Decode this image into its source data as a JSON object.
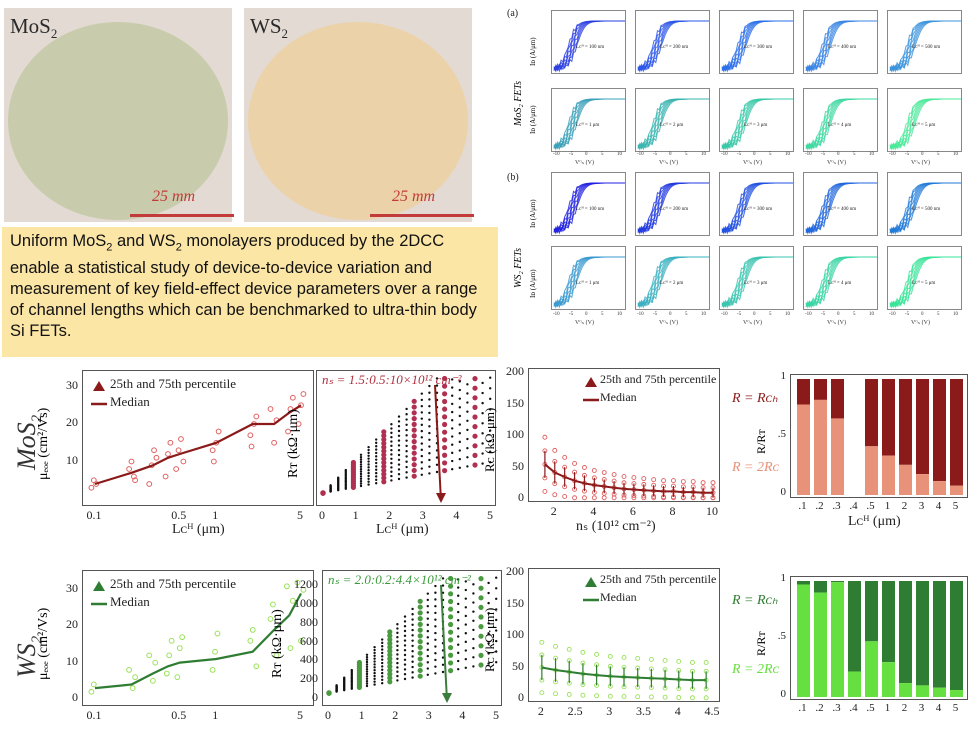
{
  "colors": {
    "mos2_wafer": "#c9ccac",
    "ws2_wafer": "#ecd2a8",
    "scale": "#c23a3a",
    "mos2_dark": "#8b1a1a",
    "mos2_light": "#e8927a",
    "mos2_points": "#e06060",
    "ws2_dark": "#2e7d32",
    "ws2_light": "#7ee860",
    "ws2_points": "#9ae25a",
    "caption_bg": "#fbe6a6"
  },
  "wafers": [
    {
      "label_main": "MoS",
      "label_sub": "2",
      "scale_text": "25 mm"
    },
    {
      "label_main": "WS",
      "label_sub": "2",
      "scale_text": "25 mm"
    }
  ],
  "caption": {
    "t1": "Uniform MoS",
    "s1": "2",
    "t2": " and WS",
    "s2": "2",
    "t3": " monolayers produced by the 2DCC enable a statistical study of device-to-device variation and measurement of key field-effect device parameters over a range of channel lengths which can be benchmarked to ultra-thin body Si FETs."
  },
  "transfer": {
    "label_a": "(a)",
    "label_b": "(b)",
    "mos2_row_label": "MoS₂ FETs",
    "ws2_row_label": "WS₂ FETs",
    "ylabel": "Iᴅ (A/μm)",
    "xlabel": "Vᴳₛ (V)",
    "top_row_L": [
      "Lᴄᴴ = 100 nm",
      "Lᴄᴴ = 200 nm",
      "Lᴄᴴ = 300 nm",
      "Lᴄᴴ = 400 nm",
      "Lᴄᴴ = 500 nm"
    ],
    "bottom_row_L": [
      "Lᴄᴴ = 1 μm",
      "Lᴄᴴ = 2 μm",
      "Lᴄᴴ = 3 μm",
      "Lᴄᴴ = 4 μm",
      "Lᴄᴴ = 5 μm"
    ],
    "x_ticks": [
      "-10",
      "-5",
      "0",
      "5",
      "10"
    ],
    "panel_colors_a1": [
      "#2a3fe0",
      "#2a55e8",
      "#2a6ee8",
      "#3a84e4",
      "#3a94dc"
    ],
    "panel_colors_a2": [
      "#3aa0b8",
      "#3ab4b0",
      "#3ac8a8",
      "#3ed8a0",
      "#4ae898"
    ],
    "panel_colors_b1": [
      "#2020e0",
      "#2038e0",
      "#2050e0",
      "#2066dc",
      "#207ad8"
    ],
    "panel_colors_b2": [
      "#3a9ad0",
      "#3ab0c0",
      "#3ac4b0",
      "#3ad4a4",
      "#3ae498"
    ]
  },
  "row_labels": {
    "mos2_main": "MoS",
    "mos2_sub": "2",
    "ws2_main": "WS",
    "ws2_sub": "2"
  },
  "chart_data": [
    {
      "type": "scatter",
      "id": "mos2-mobility",
      "legend": [
        "25th and 75th percentile",
        "Median"
      ],
      "ylabel": "μₑₒₑ (cm²/Vs)",
      "xlabel": "Lᴄᴴ (μm)",
      "x_scale": "log",
      "x_ticks": [
        "0.1",
        "0.5",
        "1",
        "5"
      ],
      "y_ticks": [
        "10",
        "20",
        "30"
      ],
      "ylim": [
        0,
        32
      ],
      "median": {
        "x": [
          0.1,
          0.2,
          0.3,
          0.4,
          0.5,
          1,
          2,
          3,
          4,
          5
        ],
        "y": [
          4,
          7,
          9,
          11,
          12,
          15,
          20,
          20,
          23,
          25
        ]
      },
      "scatter_x": [
        0.1,
        0.1,
        0.1,
        0.2,
        0.2,
        0.2,
        0.2,
        0.3,
        0.3,
        0.3,
        0.3,
        0.4,
        0.4,
        0.4,
        0.5,
        0.5,
        0.5,
        0.5,
        1,
        1,
        1,
        1,
        2,
        2,
        2,
        2,
        3,
        3,
        3,
        4,
        4,
        4,
        5,
        5,
        5
      ],
      "scatter_y": [
        3,
        5,
        4,
        5,
        8,
        10,
        6,
        4,
        9,
        13,
        11,
        6,
        12,
        15,
        8,
        13,
        16,
        10,
        10,
        15,
        18,
        13,
        14,
        20,
        22,
        17,
        15,
        21,
        24,
        18,
        24,
        27,
        20,
        25,
        28
      ]
    },
    {
      "type": "scatter",
      "id": "mos2-rt",
      "annotation": "nₛ = 1.5:0.5:10×10¹² cm⁻²",
      "ylabel": "Rᴛ (kΩ·μm)",
      "xlabel": "Lᴄᴴ (μm)",
      "x_ticks": [
        "0",
        "1",
        "2",
        "3",
        "4",
        "5"
      ],
      "xlim": [
        0,
        5
      ],
      "ylim": [
        0,
        1
      ]
    },
    {
      "type": "scatter",
      "id": "mos2-rc",
      "legend": [
        "25th and 75th percentile",
        "Median"
      ],
      "ylabel": "Rᴄ (kΩ·μm)",
      "xlabel": "nₛ (10¹² cm⁻²)",
      "x_ticks": [
        "2",
        "4",
        "6",
        "8",
        "10"
      ],
      "y_ticks": [
        "0",
        "50",
        "100",
        "150",
        "200"
      ],
      "xlim": [
        1,
        10
      ],
      "ylim": [
        0,
        200
      ],
      "median": {
        "x": [
          1.5,
          2,
          2.5,
          3,
          3.5,
          4,
          4.5,
          5,
          5.5,
          6,
          6.5,
          7,
          7.5,
          8,
          8.5,
          9,
          9.5,
          10
        ],
        "y": [
          55,
          42,
          35,
          29,
          25,
          22,
          20,
          18,
          16,
          15,
          14,
          13,
          12,
          12,
          11,
          11,
          10,
          10
        ]
      }
    },
    {
      "type": "bar",
      "id": "mos2-ratio",
      "annotations": [
        "R = Rᴄₕ",
        "R = 2Rᴄ"
      ],
      "ylabel": "R/Rᴛ",
      "xlabel": "Lᴄᴴ (μm)",
      "categories": [
        ".1",
        ".2",
        ".3",
        ".4",
        ".5",
        "1",
        "2",
        "3",
        "4",
        "5"
      ],
      "y_ticks": [
        "0",
        ".5",
        "1"
      ],
      "ylim": [
        0,
        1
      ],
      "series": [
        {
          "values": [
            0.78,
            0.82,
            0.66,
            0,
            0.42,
            0.34,
            0.26,
            0.18,
            0.12,
            0.08
          ]
        }
      ]
    },
    {
      "type": "scatter",
      "id": "ws2-mobility",
      "legend": [
        "25th and 75th percentile",
        "Median"
      ],
      "ylabel": "μₑₒₑ (cm²/Vs)",
      "x_scale": "log",
      "x_ticks": [
        "0.1",
        "0.5",
        "1",
        "5"
      ],
      "y_ticks": [
        "0",
        "10",
        "20",
        "30"
      ],
      "ylim": [
        0,
        33
      ],
      "median": {
        "x": [
          0.1,
          0.2,
          0.3,
          0.4,
          0.5,
          1,
          2,
          3,
          4,
          5
        ],
        "y": [
          3,
          4,
          7,
          9,
          10,
          11,
          13,
          19,
          23,
          29
        ]
      },
      "scatter_x": [
        0.1,
        0.1,
        0.2,
        0.2,
        0.2,
        0.3,
        0.3,
        0.3,
        0.4,
        0.4,
        0.4,
        0.5,
        0.5,
        0.5,
        1,
        1,
        1,
        2,
        2,
        2,
        3,
        3,
        3,
        4,
        4,
        4,
        5,
        5,
        5
      ],
      "scatter_y": [
        2,
        4,
        3,
        6,
        8,
        5,
        10,
        12,
        7,
        12,
        16,
        6,
        14,
        17,
        8,
        13,
        18,
        9,
        16,
        19,
        12,
        22,
        26,
        14,
        27,
        31,
        16,
        30,
        32
      ]
    },
    {
      "type": "scatter",
      "id": "ws2-rt",
      "annotation": "nₛ = 2.0:0.2:4.4×10¹² cm⁻²",
      "ylabel": "Rᴛ (kΩ·μm)",
      "x_ticks": [
        "0",
        "1",
        "2",
        "3",
        "4",
        "5"
      ],
      "y_ticks": [
        "0",
        "200",
        "400",
        "600",
        "800",
        "1000",
        "1200"
      ],
      "xlim": [
        0,
        5
      ],
      "ylim": [
        0,
        1300
      ]
    },
    {
      "type": "scatter",
      "id": "ws2-rc",
      "legend": [
        "25th and 75th percentile",
        "Median"
      ],
      "ylabel": "Rᴄ (kΩ·μm)",
      "x_ticks": [
        "2",
        "2.5",
        "3",
        "3.5",
        "4",
        "4.5"
      ],
      "y_ticks": [
        "0",
        "50",
        "100",
        "150",
        "200"
      ],
      "xlim": [
        1.9,
        4.5
      ],
      "ylim": [
        0,
        200
      ],
      "median": {
        "x": [
          2,
          2.2,
          2.4,
          2.6,
          2.8,
          3,
          3.2,
          3.4,
          3.6,
          3.8,
          4,
          4.2,
          4.4
        ],
        "y": [
          50,
          46,
          43,
          40,
          38,
          36,
          35,
          34,
          33,
          32,
          31,
          30,
          30
        ]
      }
    },
    {
      "type": "bar",
      "id": "ws2-ratio",
      "annotations": [
        "R = Rᴄₕ",
        "R = 2Rᴄ"
      ],
      "ylabel": "R/Rᴛ",
      "categories": [
        ".1",
        ".2",
        ".3",
        ".4",
        ".5",
        "1",
        "2",
        "3",
        "4",
        "5"
      ],
      "y_ticks": [
        "0",
        ".5",
        "1"
      ],
      "ylim": [
        0,
        1
      ],
      "series": [
        {
          "values": [
            0.97,
            0.9,
            0.99,
            0.22,
            0.48,
            0.3,
            0.12,
            0.1,
            0.08,
            0.06
          ]
        }
      ]
    }
  ]
}
